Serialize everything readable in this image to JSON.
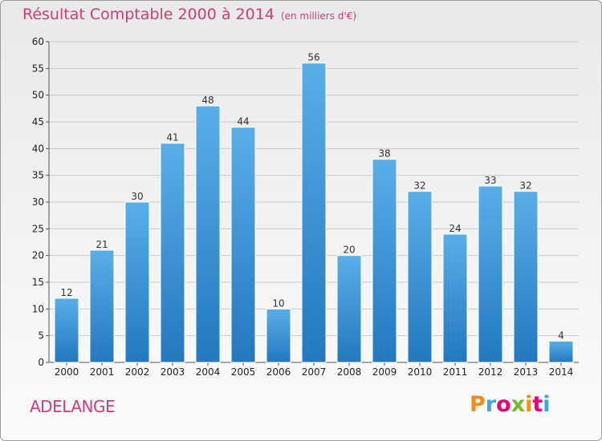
{
  "header": {
    "title": "Résultat Comptable 2000 à 2014",
    "unit": "(en milliers d'€)"
  },
  "footer": {
    "place": "ADELANGE",
    "logo": "Proxiti",
    "logo_colors": [
      "#f28c1c",
      "#36a9e1",
      "#e6007e",
      "#7cb82f",
      "#f28c1c",
      "#e6007e",
      "#36a9e1"
    ]
  },
  "colors": {
    "title": "#d13b7a",
    "bar_light": "#5aaee8",
    "bar_dark": "#2378bf"
  },
  "chart_data": {
    "type": "bar",
    "categories": [
      "2000",
      "2001",
      "2002",
      "2003",
      "2004",
      "2005",
      "2006",
      "2007",
      "2008",
      "2009",
      "2010",
      "2011",
      "2012",
      "2013",
      "2014"
    ],
    "values": [
      12,
      21,
      30,
      41,
      48,
      44,
      10,
      56,
      20,
      38,
      32,
      24,
      33,
      32,
      4
    ],
    "title": "Résultat Comptable 2000 à 2014",
    "xlabel": "",
    "ylabel": "",
    "ylim": [
      0,
      60
    ],
    "yticks": [
      0,
      5,
      10,
      15,
      20,
      25,
      30,
      35,
      40,
      45,
      50,
      55,
      60
    ],
    "grid": true,
    "data_labels": true
  }
}
